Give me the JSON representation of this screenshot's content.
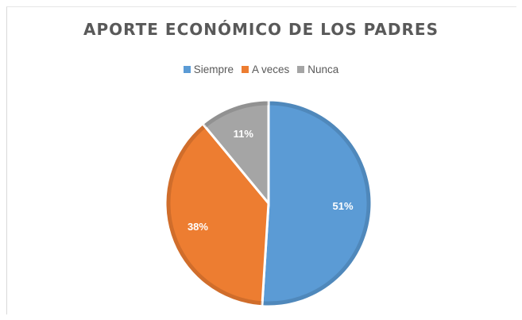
{
  "chart_data": {
    "type": "pie",
    "title": "APORTE ECONÓMICO DE LOS PADRES",
    "categories": [
      "Siempre",
      "A veces",
      "Nunca"
    ],
    "values": [
      51,
      38,
      11
    ],
    "labels": [
      "51%",
      "38%",
      "11%"
    ],
    "colors": [
      "#5b9bd5",
      "#ed7d31",
      "#a5a5a5"
    ],
    "legend_position": "top"
  }
}
